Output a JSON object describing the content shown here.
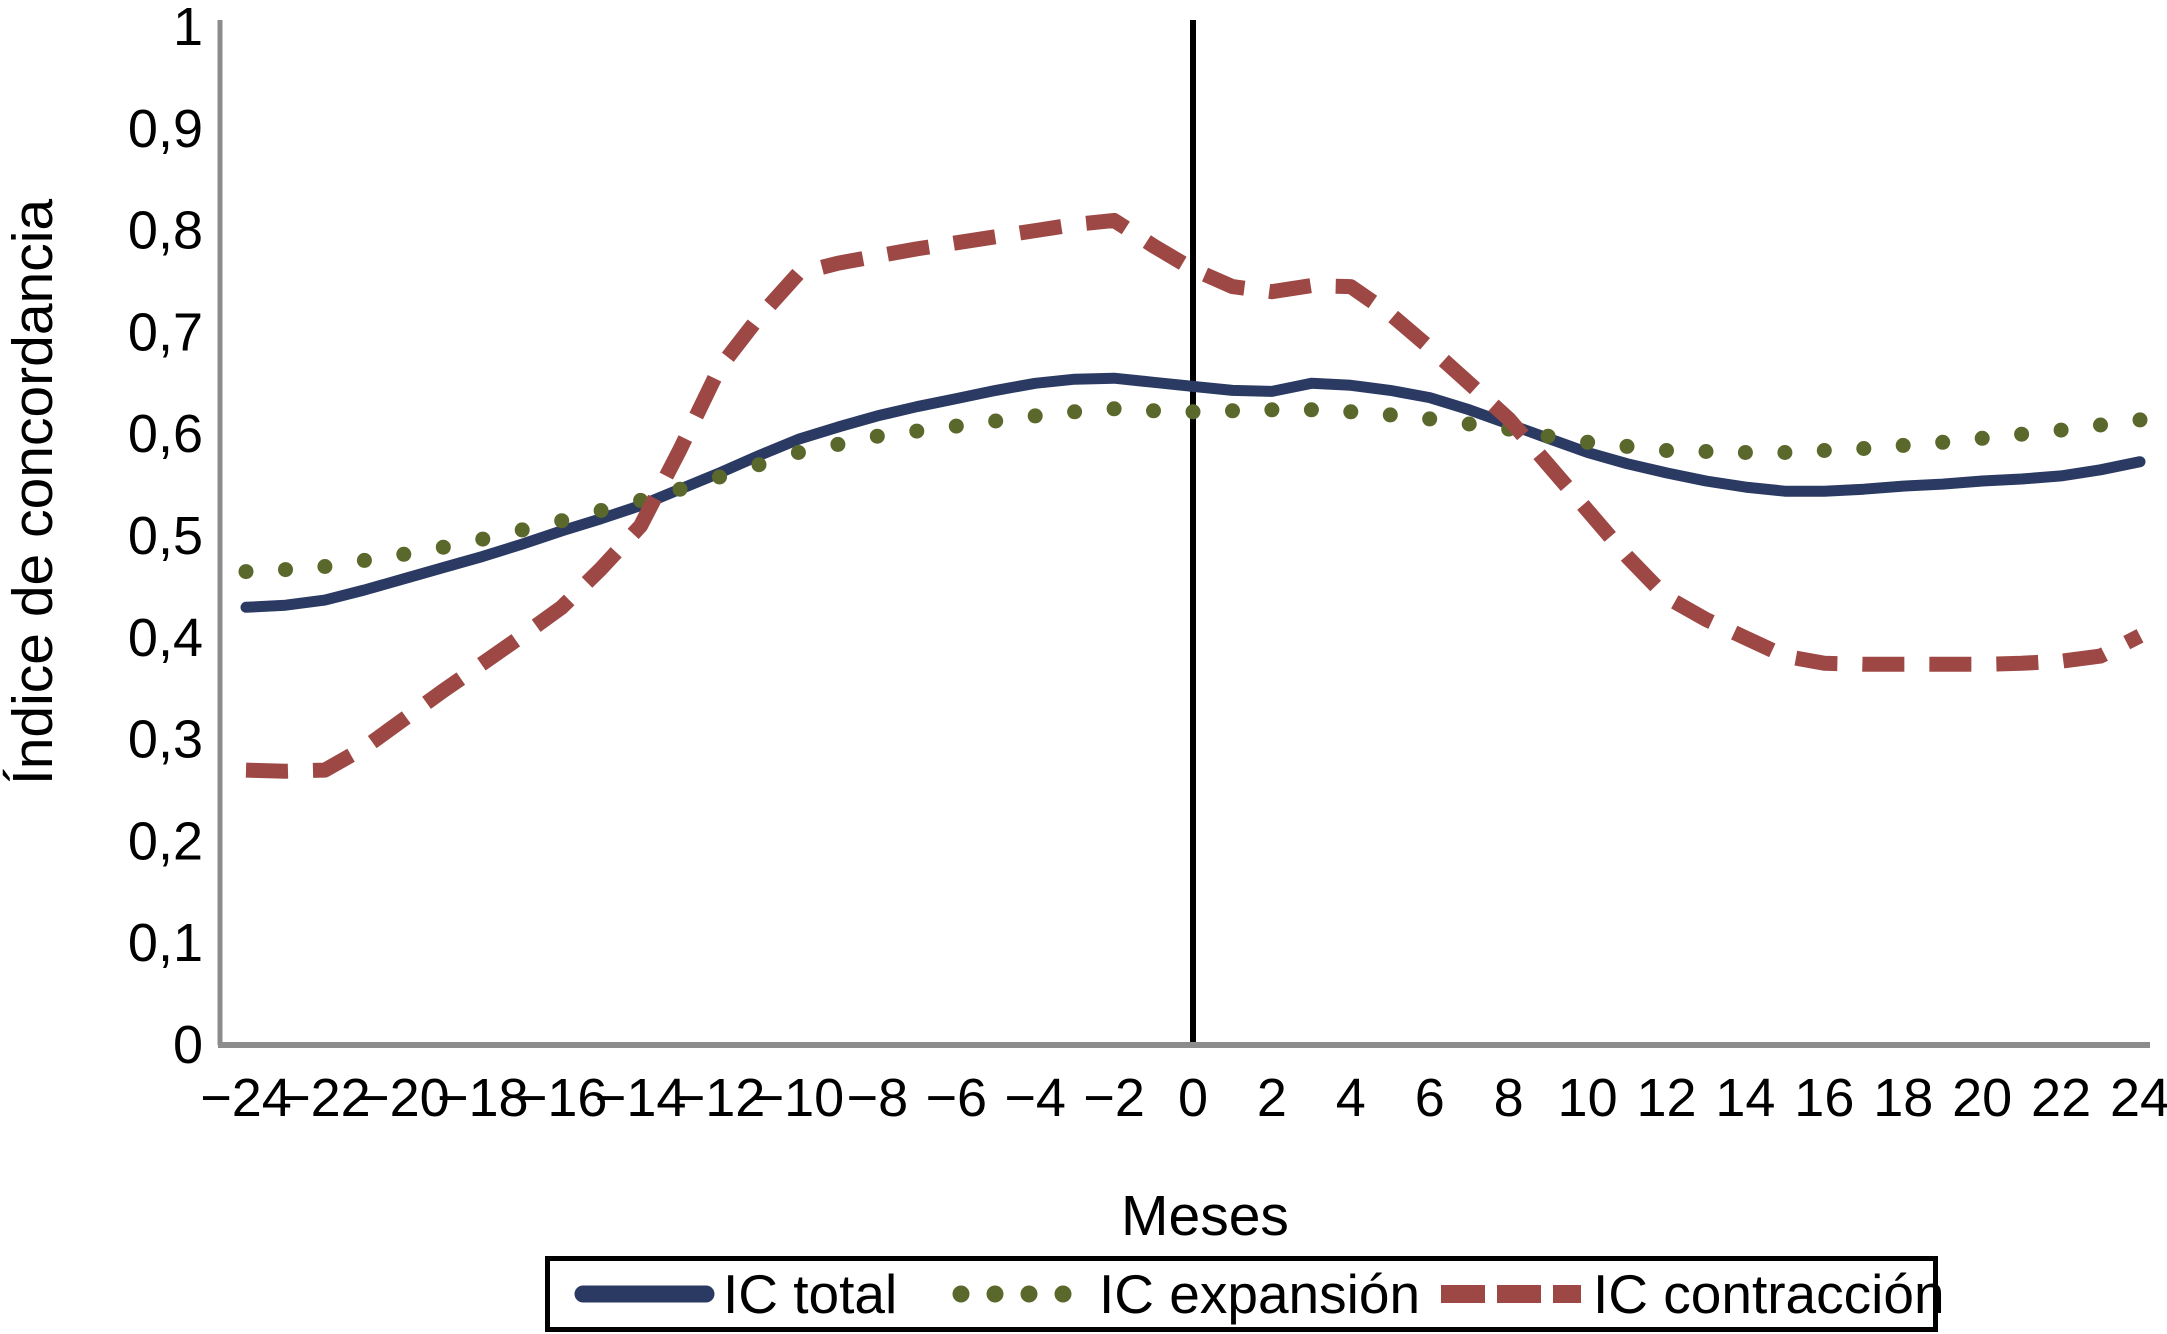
{
  "chart_data": {
    "type": "line",
    "title": "",
    "xlabel": "Meses",
    "ylabel": "Índice de concordancia",
    "xlim": [
      -24,
      24
    ],
    "ylim": [
      0,
      1
    ],
    "grid": false,
    "legend_position": "bottom-center-boxed",
    "axis_color": "#8C8C8C",
    "zero_line": {
      "x": 0,
      "color": "#000000"
    },
    "x": [
      -24,
      -23,
      -22,
      -21,
      -20,
      -19,
      -18,
      -17,
      -16,
      -15,
      -14,
      -13,
      -12,
      -11,
      -10,
      -9,
      -8,
      -7,
      -6,
      -5,
      -4,
      -3,
      -2,
      -1,
      0,
      1,
      2,
      3,
      4,
      5,
      6,
      7,
      8,
      9,
      10,
      11,
      12,
      13,
      14,
      15,
      16,
      17,
      18,
      19,
      20,
      21,
      22,
      23,
      24
    ],
    "xticks": [
      -24,
      -22,
      -20,
      -18,
      -16,
      -14,
      -12,
      -10,
      -8,
      -6,
      -4,
      -2,
      0,
      2,
      4,
      6,
      8,
      10,
      12,
      14,
      16,
      18,
      20,
      22,
      24
    ],
    "xtick_labels": [
      "−24",
      "−22",
      "−20",
      "−18",
      "−16",
      "−14",
      "−12",
      "−10",
      "−8",
      "−6",
      "−4",
      "−2",
      "0",
      "2",
      "4",
      "6",
      "8",
      "10",
      "12",
      "14",
      "16",
      "18",
      "20",
      "22",
      "24"
    ],
    "ytick_values": [
      1,
      0.9,
      0.8,
      0.7,
      0.6,
      0.5,
      0.4,
      0.3,
      0.2,
      0.1,
      0
    ],
    "ytick_labels": [
      "1",
      "0,9",
      "0,8",
      "0,7",
      "0,6",
      "0,5",
      "0,4",
      "0,3",
      "0,2",
      "0,1",
      "0"
    ],
    "series": [
      {
        "name": "IC total",
        "style": "solid",
        "color": "#2B3A62",
        "stroke_width": 11,
        "values": [
          0.43,
          0.432,
          0.437,
          0.447,
          0.458,
          0.469,
          0.48,
          0.492,
          0.505,
          0.517,
          0.53,
          0.546,
          0.562,
          0.579,
          0.595,
          0.607,
          0.618,
          0.627,
          0.635,
          0.643,
          0.65,
          0.654,
          0.655,
          0.651,
          0.647,
          0.643,
          0.642,
          0.65,
          0.648,
          0.643,
          0.636,
          0.624,
          0.61,
          0.596,
          0.582,
          0.571,
          0.562,
          0.554,
          0.548,
          0.544,
          0.544,
          0.546,
          0.549,
          0.551,
          0.554,
          0.556,
          0.559,
          0.565,
          0.573
        ]
      },
      {
        "name": "IC expansión",
        "style": "dotted",
        "color": "#5A682B",
        "dot_radius": 7.5,
        "values": [
          0.465,
          0.467,
          0.47,
          0.476,
          0.482,
          0.489,
          0.497,
          0.506,
          0.515,
          0.525,
          0.535,
          0.546,
          0.558,
          0.57,
          0.582,
          0.59,
          0.598,
          0.603,
          0.608,
          0.613,
          0.618,
          0.622,
          0.625,
          0.623,
          0.622,
          0.623,
          0.624,
          0.624,
          0.622,
          0.619,
          0.615,
          0.61,
          0.605,
          0.598,
          0.592,
          0.588,
          0.584,
          0.583,
          0.582,
          0.582,
          0.584,
          0.586,
          0.589,
          0.592,
          0.596,
          0.6,
          0.604,
          0.609,
          0.614
        ]
      },
      {
        "name": "IC contracción",
        "style": "dashed",
        "color": "#9E4845",
        "stroke_width": 15,
        "dash_pattern": [
          42,
          25
        ],
        "values": [
          0.27,
          0.269,
          0.27,
          0.292,
          0.32,
          0.348,
          0.375,
          0.402,
          0.43,
          0.468,
          0.51,
          0.585,
          0.665,
          0.715,
          0.758,
          0.768,
          0.775,
          0.782,
          0.788,
          0.794,
          0.8,
          0.806,
          0.81,
          0.785,
          0.762,
          0.745,
          0.74,
          0.746,
          0.745,
          0.718,
          0.685,
          0.65,
          0.615,
          0.57,
          0.525,
          0.48,
          0.44,
          0.418,
          0.4,
          0.382,
          0.375,
          0.374,
          0.374,
          0.374,
          0.374,
          0.375,
          0.377,
          0.382,
          0.402
        ]
      }
    ],
    "legend": {
      "items": [
        {
          "label": "IC total",
          "swatch": "solid-line"
        },
        {
          "label": "IC expansión",
          "swatch": "dots"
        },
        {
          "label": "IC contracción",
          "swatch": "dashes"
        }
      ]
    }
  }
}
